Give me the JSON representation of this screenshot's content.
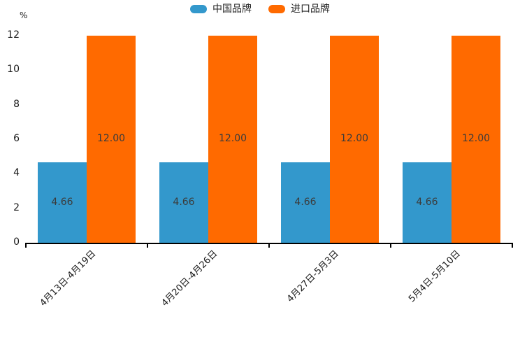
{
  "chart_data": {
    "type": "bar",
    "title": "",
    "unit_label": "%",
    "categories": [
      "4月13日-4月19日",
      "4月20日-4月26日",
      "4月27日-5月3日",
      "5月4日-5月10日"
    ],
    "series": [
      {
        "name": "中国品牌",
        "color": "#3398CC",
        "values": [
          4.66,
          4.66,
          4.66,
          4.66
        ],
        "labels": [
          "4.66",
          "4.66",
          "4.66",
          "4.66"
        ]
      },
      {
        "name": "进口品牌",
        "color": "#FF6A00",
        "values": [
          12.0,
          12.0,
          12.0,
          12.0
        ],
        "labels": [
          "12.00",
          "12.00",
          "12.00",
          "12.00"
        ]
      }
    ],
    "ylim": [
      0,
      12
    ],
    "yticks": [
      0,
      2,
      4,
      6,
      8,
      10,
      12
    ],
    "grid": false,
    "legend_position": "top-center",
    "bar_label_color": "#3b3b3b",
    "axis_color": "#000000",
    "xlabel": "",
    "ylabel": "%"
  }
}
